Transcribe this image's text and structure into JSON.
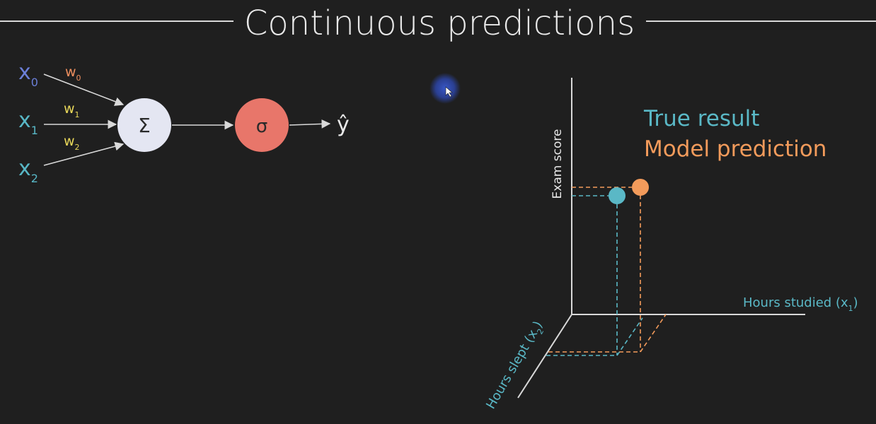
{
  "slide": {
    "title": "Continuous predictions"
  },
  "neuron": {
    "inputs": [
      {
        "name": "x",
        "sub": "0",
        "color": "#6b7fd8"
      },
      {
        "name": "x",
        "sub": "1",
        "color": "#58b7c6"
      },
      {
        "name": "x",
        "sub": "2",
        "color": "#58b7c6"
      }
    ],
    "weights": [
      {
        "name": "w",
        "sub": "0",
        "color": "#ef8f5f"
      },
      {
        "name": "w",
        "sub": "1",
        "color": "#e9d85a"
      },
      {
        "name": "w",
        "sub": "2",
        "color": "#e9d85a"
      }
    ],
    "sum_symbol": "Σ",
    "activation_symbol": "σ",
    "output_symbol": "ŷ",
    "sum_node_color": "#e4e6f2",
    "activation_node_color": "#e8766a"
  },
  "plot3d": {
    "legend": {
      "true_result": "True result",
      "model_prediction": "Model prediction"
    },
    "axes": {
      "y_label": "Exam score",
      "x_label": "Hours studied (x",
      "x_label_sub": "1",
      "x_label_end": ")",
      "z_label": "Hours slept (x",
      "z_label_sub": "2",
      "z_label_end": ")"
    },
    "colors": {
      "true_result": "#5ab8c6",
      "model_prediction": "#f39b5b",
      "axis": "#d9d9d9",
      "axis_label_cyan": "#5ab8c6"
    }
  },
  "cursor": {
    "icon": "cursor-arrow-icon",
    "highlight_color": "#3a5bd0"
  }
}
